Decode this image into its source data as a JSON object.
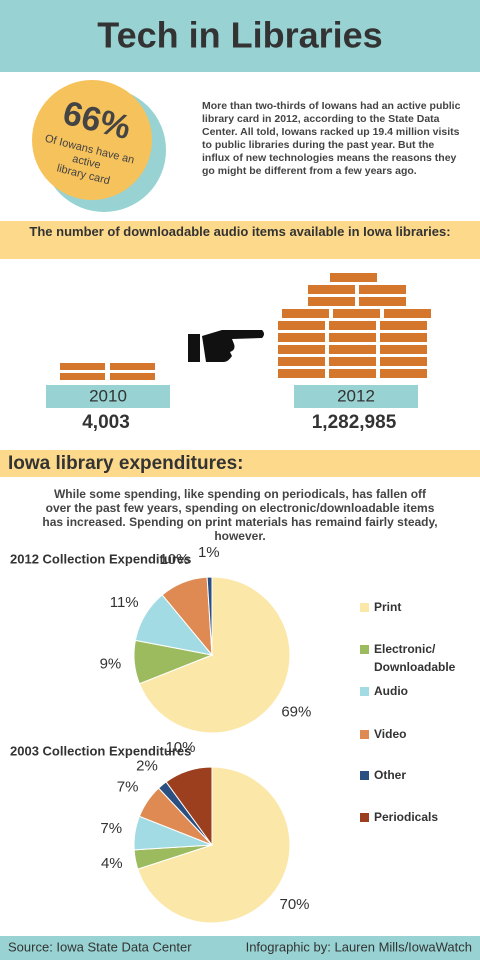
{
  "header": {
    "title": "Tech in Libraries"
  },
  "badge": {
    "stat": "66%",
    "lines": [
      "Of Iowans have an",
      "active",
      "library card"
    ]
  },
  "intro": "More than two-thirds of Iowans had an active public library card in 2012, according to the State Data Center.  All told, Iowans racked up 19.4 million visits to public libraries during the past year. But the influx of new technologies means the reasons they go might be different from a few years ago.",
  "audio": {
    "heading": "The number of downloadable audio items available in Iowa libraries:",
    "years": [
      {
        "year": "2010",
        "count": "4,003"
      },
      {
        "year": "2012",
        "count": "1,282,985"
      }
    ]
  },
  "expenditures": {
    "heading": "Iowa library expenditures:",
    "text": "While some spending, like spending on periodicals, has fallen off over the past few years, spending on electronic/downloadable items has increased. Spending on print materials has remaind fairly steady, however."
  },
  "chart_data": [
    {
      "type": "pie",
      "title": "2012 Collection Expenditures",
      "categories": [
        "Print",
        "Electronic/ Downloadable",
        "Audio",
        "Video",
        "Other"
      ],
      "values": [
        69,
        9,
        11,
        10,
        1
      ],
      "value_labels": [
        "69%",
        "9%",
        "11%",
        "10%",
        "1%"
      ],
      "colors": [
        "#fbe7a8",
        "#9cbb5f",
        "#a3dbe4",
        "#de8a52",
        "#2b4f80"
      ]
    },
    {
      "type": "pie",
      "title": "2003 Collection Expenditures",
      "categories": [
        "Print",
        "Electronic/ Downloadable",
        "Audio",
        "Video",
        "Other",
        "Periodicals"
      ],
      "values": [
        70,
        4,
        7,
        7,
        2,
        10
      ],
      "value_labels": [
        "70%",
        "4%",
        "7%",
        "7%",
        "2%",
        "10%"
      ],
      "colors": [
        "#fbe7a8",
        "#9cbb5f",
        "#a3dbe4",
        "#de8a52",
        "#2b4f80",
        "#9b3f1f"
      ]
    }
  ],
  "footer": {
    "source": "Source: Iowa State Data Center",
    "credit": "Infographic by: Lauren Mills/IowaWatch"
  }
}
